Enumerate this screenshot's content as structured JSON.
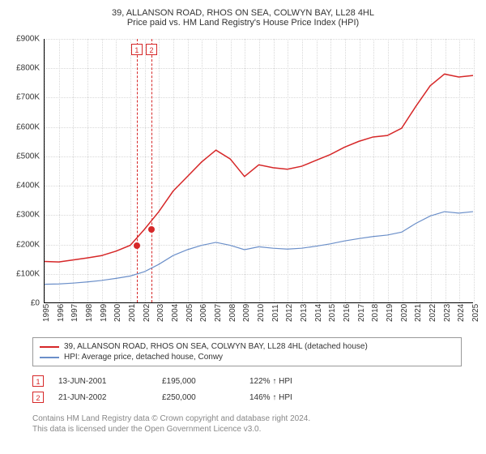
{
  "title": {
    "line1": "39, ALLANSON ROAD, RHOS ON SEA, COLWYN BAY, LL28 4HL",
    "line2": "Price paid vs. HM Land Registry's House Price Index (HPI)"
  },
  "chart": {
    "type": "line",
    "background_color": "#ffffff",
    "grid_color": "#d8d8d8",
    "axis_color": "#000000",
    "label_fontsize": 10,
    "ylim": [
      0,
      900000
    ],
    "ytick_step": 100000,
    "yticks_labels": [
      "£0",
      "£100K",
      "£200K",
      "£300K",
      "£400K",
      "£500K",
      "£600K",
      "£700K",
      "£800K",
      "£900K"
    ],
    "x_years": [
      1995,
      1996,
      1997,
      1998,
      1999,
      2000,
      2001,
      2002,
      2003,
      2004,
      2005,
      2006,
      2007,
      2008,
      2009,
      2010,
      2011,
      2012,
      2013,
      2014,
      2015,
      2016,
      2017,
      2018,
      2019,
      2020,
      2021,
      2022,
      2023,
      2024,
      2025
    ],
    "series": [
      {
        "name": "39, ALLANSON ROAD, RHOS ON SEA, COLWYN BAY, LL28 4HL (detached house)",
        "color": "#d62728",
        "line_width": 1.5,
        "values_by_year": {
          "1995": 140000,
          "1996": 138000,
          "1997": 145000,
          "1998": 152000,
          "1999": 160000,
          "2000": 175000,
          "2001": 195000,
          "2002": 250000,
          "2003": 310000,
          "2004": 380000,
          "2005": 430000,
          "2006": 480000,
          "2007": 520000,
          "2008": 490000,
          "2009": 430000,
          "2010": 470000,
          "2011": 460000,
          "2012": 455000,
          "2013": 465000,
          "2014": 485000,
          "2015": 505000,
          "2016": 530000,
          "2017": 550000,
          "2018": 565000,
          "2019": 570000,
          "2020": 595000,
          "2021": 670000,
          "2022": 740000,
          "2023": 780000,
          "2024": 770000,
          "2025": 775000
        }
      },
      {
        "name": "HPI: Average price, detached house, Conwy",
        "color": "#6b8fc9",
        "line_width": 1.2,
        "values_by_year": {
          "1995": 62000,
          "1996": 63000,
          "1997": 66000,
          "1998": 70000,
          "1999": 75000,
          "2000": 82000,
          "2001": 90000,
          "2002": 105000,
          "2003": 130000,
          "2004": 160000,
          "2005": 180000,
          "2006": 195000,
          "2007": 205000,
          "2008": 195000,
          "2009": 180000,
          "2010": 190000,
          "2011": 185000,
          "2012": 182000,
          "2013": 185000,
          "2014": 192000,
          "2015": 200000,
          "2016": 210000,
          "2017": 218000,
          "2018": 225000,
          "2019": 230000,
          "2020": 240000,
          "2021": 270000,
          "2022": 295000,
          "2023": 310000,
          "2024": 305000,
          "2025": 310000
        }
      }
    ],
    "sales": [
      {
        "id": "1",
        "year": 2001.45,
        "price": 195000,
        "date": "13-JUN-2001",
        "hpi_pct": "122% ↑ HPI",
        "color": "#d62728"
      },
      {
        "id": "2",
        "year": 2002.47,
        "price": 250000,
        "date": "21-JUN-2002",
        "hpi_pct": "146% ↑ HPI",
        "color": "#d62728"
      }
    ]
  },
  "legend": {
    "items": [
      {
        "color": "#d62728",
        "label": "39, ALLANSON ROAD, RHOS ON SEA, COLWYN BAY, LL28 4HL (detached house)"
      },
      {
        "color": "#6b8fc9",
        "label": "HPI: Average price, detached house, Conwy"
      }
    ]
  },
  "footer": {
    "line1": "Contains HM Land Registry data © Crown copyright and database right 2024.",
    "line2": "This data is licensed under the Open Government Licence v3.0."
  }
}
